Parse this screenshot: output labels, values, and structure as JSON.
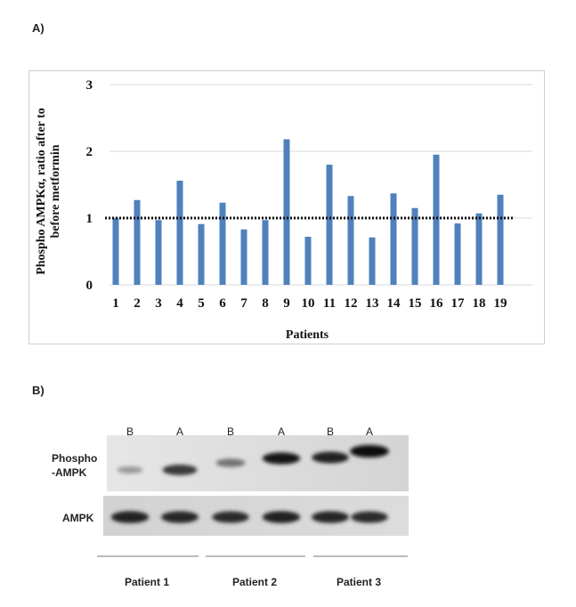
{
  "panel_a_label": "A)",
  "panel_b_label": "B)",
  "chart_data": {
    "type": "bar",
    "title": "",
    "xlabel": "Patients",
    "ylabel_line1": "Phospho AMPKα, ratio after to",
    "ylabel_line2": "before metformin",
    "categories": [
      "1",
      "2",
      "3",
      "4",
      "5",
      "6",
      "7",
      "8",
      "9",
      "10",
      "11",
      "12",
      "13",
      "14",
      "15",
      "16",
      "17",
      "18",
      "19"
    ],
    "values": [
      1.0,
      1.27,
      0.97,
      1.56,
      0.91,
      1.23,
      0.83,
      0.97,
      2.18,
      0.72,
      1.8,
      1.33,
      0.71,
      1.37,
      1.15,
      1.95,
      0.92,
      1.07,
      1.35
    ],
    "ylim": [
      0,
      3
    ],
    "yticks": [
      0,
      1,
      2,
      3
    ],
    "reference_line": 1,
    "bar_color": "#4f81bd",
    "grid": true
  },
  "blot": {
    "lanes": [
      "B",
      "A",
      "B",
      "A",
      "B",
      "A"
    ],
    "phospho_intensity": [
      0.25,
      0.75,
      0.45,
      0.92,
      0.88,
      1.0
    ],
    "ampk_intensity": [
      0.9,
      0.88,
      0.85,
      0.9,
      0.88,
      0.85
    ],
    "row_label_phospho_line1": "Phospho",
    "row_label_phospho_line2": "-AMPK",
    "row_label_ampk": "AMPK",
    "patients": [
      "Patient 1",
      "Patient 2",
      "Patient 3"
    ]
  }
}
